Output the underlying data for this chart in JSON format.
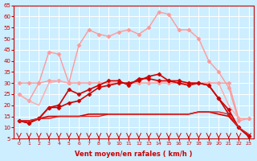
{
  "x": [
    0,
    1,
    2,
    3,
    4,
    5,
    6,
    7,
    8,
    9,
    10,
    11,
    12,
    13,
    14,
    15,
    16,
    17,
    18,
    19,
    20,
    21,
    22,
    23
  ],
  "series": [
    {
      "color": "#ff9999",
      "linewidth": 1.0,
      "marker": "D",
      "markersize": 2.5,
      "values": [
        25,
        22,
        30,
        44,
        43,
        30,
        47,
        54,
        52,
        51,
        53,
        54,
        52,
        55,
        62,
        61,
        54,
        54,
        50,
        40,
        35,
        28,
        13,
        14
      ]
    },
    {
      "color": "#ff9999",
      "linewidth": 1.0,
      "marker": "D",
      "markersize": 2.5,
      "values": [
        30,
        30,
        30,
        31,
        31,
        30,
        30,
        30,
        30,
        30,
        30,
        30,
        30,
        30,
        30,
        30,
        30,
        30,
        30,
        30,
        30,
        30,
        14,
        14
      ]
    },
    {
      "color": "#ffaaaa",
      "linewidth": 1.0,
      "marker": null,
      "markersize": 0,
      "values": [
        25,
        22,
        20,
        30,
        31,
        30,
        30,
        30,
        30,
        30,
        30,
        30,
        30,
        30,
        30,
        30,
        30,
        30,
        30,
        30,
        30,
        20,
        14,
        14
      ]
    },
    {
      "color": "#cc0000",
      "linewidth": 1.2,
      "marker": "D",
      "markersize": 2.5,
      "values": [
        13,
        12,
        14,
        19,
        20,
        27,
        25,
        27,
        29,
        31,
        31,
        29,
        32,
        32,
        31,
        31,
        30,
        29,
        30,
        29,
        23,
        16,
        10,
        6
      ]
    },
    {
      "color": "#cc0000",
      "linewidth": 1.2,
      "marker": "D",
      "markersize": 2.5,
      "values": [
        13,
        12,
        14,
        19,
        19,
        21,
        22,
        25,
        28,
        29,
        30,
        30,
        31,
        33,
        34,
        31,
        31,
        30,
        30,
        29,
        23,
        18,
        10,
        6
      ]
    },
    {
      "color": "#cc0000",
      "linewidth": 1.2,
      "marker": null,
      "markersize": 0,
      "values": [
        13,
        13,
        14,
        15,
        15,
        15,
        15,
        16,
        16,
        16,
        16,
        16,
        16,
        16,
        16,
        16,
        16,
        16,
        17,
        17,
        16,
        15,
        10,
        6
      ]
    },
    {
      "color": "#dd2222",
      "linewidth": 1.0,
      "marker": null,
      "markersize": 0,
      "values": [
        13,
        13,
        14,
        14,
        15,
        15,
        15,
        15,
        15,
        16,
        16,
        16,
        16,
        16,
        16,
        16,
        16,
        16,
        17,
        17,
        17,
        16,
        10,
        7
      ]
    }
  ],
  "ylim": [
    5,
    65
  ],
  "yticks": [
    5,
    10,
    15,
    20,
    25,
    30,
    35,
    40,
    45,
    50,
    55,
    60,
    65
  ],
  "xlim": [
    -0.5,
    23.5
  ],
  "xticks": [
    0,
    1,
    2,
    3,
    4,
    5,
    6,
    7,
    8,
    9,
    10,
    11,
    12,
    13,
    14,
    15,
    16,
    17,
    18,
    19,
    20,
    21,
    22,
    23
  ],
  "xlabel": "Vent moyen/en rafales ( km/h )",
  "background_color": "#cceeff",
  "grid_color": "#ffffff",
  "axis_color": "#cc0000",
  "tick_color": "#cc0000",
  "label_color": "#cc0000",
  "arrow_color": "#cc0000"
}
